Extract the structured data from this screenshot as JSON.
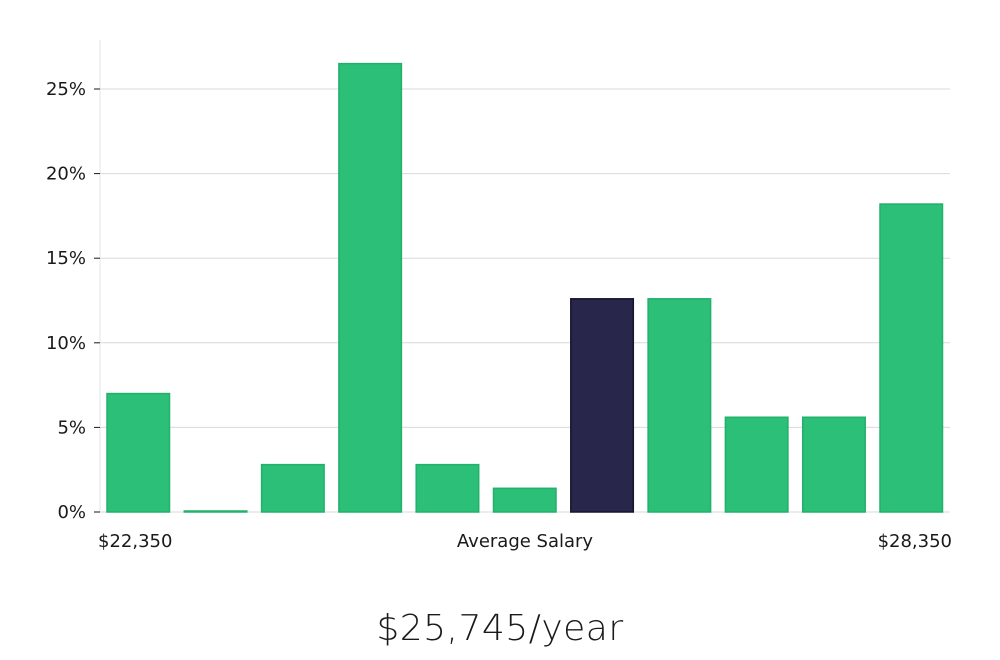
{
  "chart_data": {
    "type": "bar",
    "categories": [
      "1",
      "2",
      "3",
      "4",
      "5",
      "6",
      "7",
      "8",
      "9",
      "10",
      "11"
    ],
    "values": [
      7.0,
      0.05,
      2.8,
      26.5,
      2.8,
      1.4,
      12.6,
      12.6,
      5.6,
      5.6,
      18.2
    ],
    "highlight_index": 6,
    "ylim": [
      0,
      28
    ],
    "yticks": [
      0,
      5,
      10,
      15,
      20,
      25
    ],
    "ytick_labels": [
      "0%",
      "5%",
      "10%",
      "15%",
      "20%",
      "25%"
    ],
    "x_min_label": "$22,350",
    "xlabel": "Average Salary",
    "x_max_label": "$28,350",
    "grid": true,
    "colors": {
      "bar": "#2bbf77",
      "bar_edge": "#22b06b",
      "highlight": "#28264a",
      "highlight_edge": "#15132e"
    }
  },
  "footer": {
    "salary_text": "$25,745/year"
  }
}
